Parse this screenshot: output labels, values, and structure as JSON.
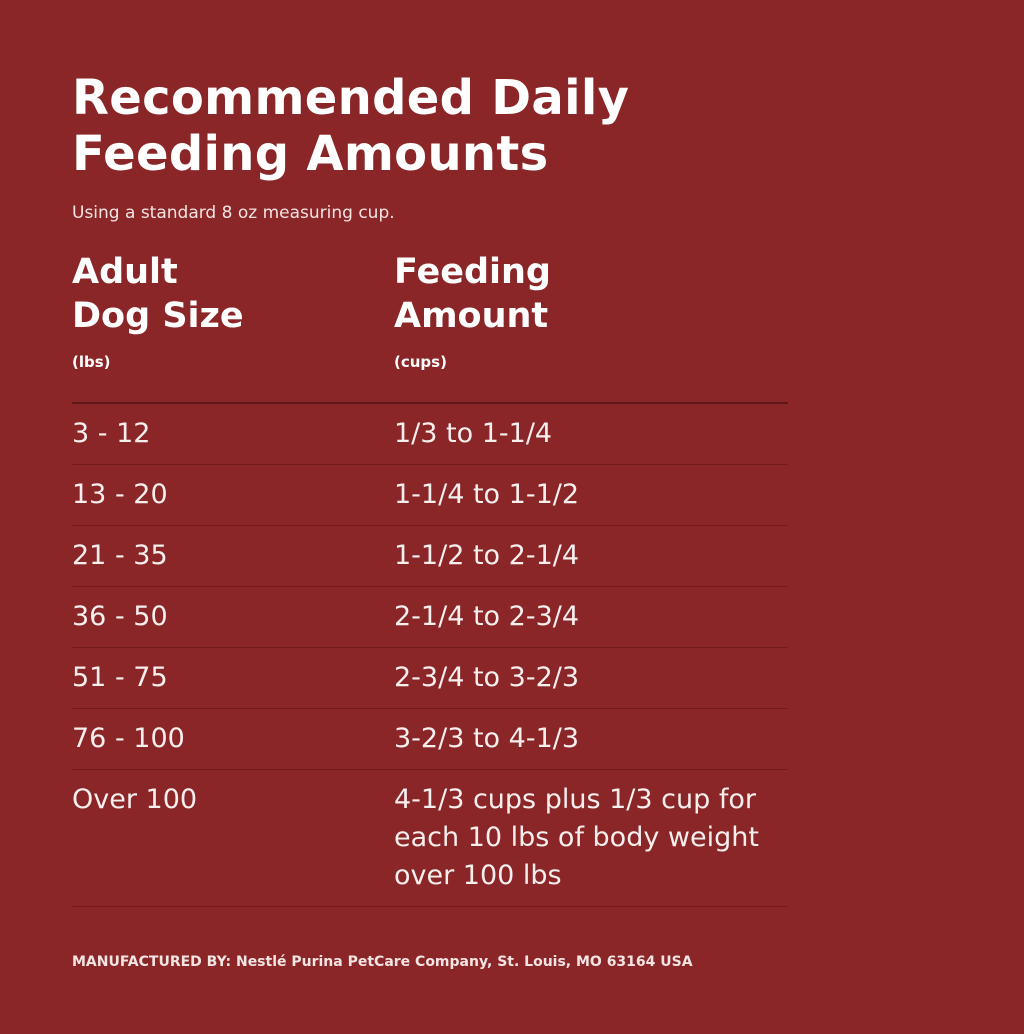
{
  "title_line1": "Recommended Daily",
  "title_line2": "Feeding Amounts",
  "subtitle": "Using a standard 8 oz measuring cup.",
  "columns": [
    {
      "line1": "Adult",
      "line2": "Dog Size",
      "unit": "(lbs)"
    },
    {
      "line1": "Feeding",
      "line2": "Amount",
      "unit": "(cups)"
    }
  ],
  "rows": [
    {
      "size": "3 - 12",
      "amount": "1/3 to 1-1/4"
    },
    {
      "size": "13 - 20",
      "amount": "1-1/4 to 1-1/2"
    },
    {
      "size": "21 - 35",
      "amount": "1-1/2 to 2-1/4"
    },
    {
      "size": "36 - 50",
      "amount": "2-1/4 to 2-3/4"
    },
    {
      "size": "51 - 75",
      "amount": "2-3/4 to 3-2/3"
    },
    {
      "size": "76 - 100",
      "amount": "3-2/3 to 4-1/3"
    },
    {
      "size": "Over 100",
      "amount": "4-1/3 cups plus 1/3 cup for each 10 lbs of body weight over 100 lbs"
    }
  ],
  "footer": "MANUFACTURED BY: Nestlé Purina PetCare Company, St. Louis, MO 63164 USA"
}
